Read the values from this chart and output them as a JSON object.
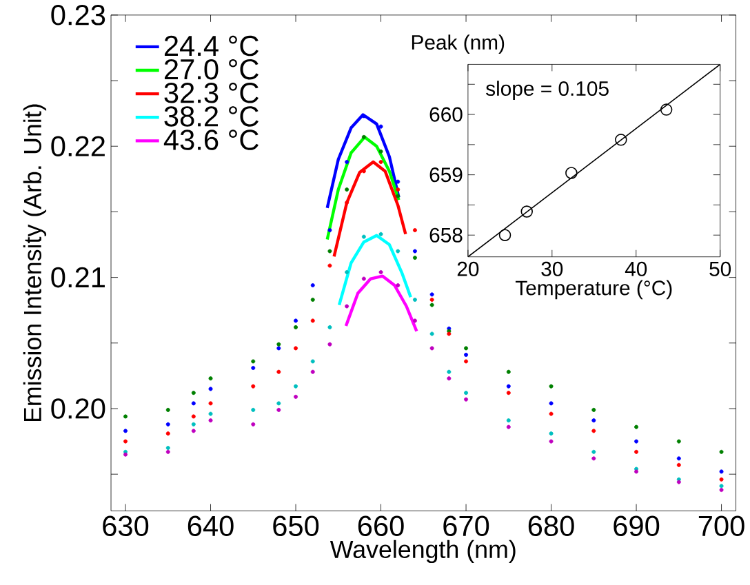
{
  "chart_data": [
    {
      "type": "scatter",
      "xlabel": "Wavelength (nm)",
      "ylabel": "Emission Intensity (Arb. Unit)",
      "x": [
        630,
        635,
        638,
        640,
        645,
        648,
        650,
        652,
        654,
        656,
        658,
        660,
        662,
        664,
        666,
        668,
        670,
        675,
        680,
        685,
        690,
        695,
        700
      ],
      "series": [
        {
          "color": "#0000ff",
          "marker": "circle",
          "values": [
            0.1983,
            0.1988,
            0.2004,
            0.2015,
            0.2031,
            0.2046,
            0.2067,
            0.2094,
            0.2136,
            0.2188,
            0.2223,
            0.2215,
            0.2173,
            0.212,
            0.2087,
            0.2061,
            0.2041,
            0.2017,
            0.2004,
            0.1991,
            0.1975,
            0.1962,
            0.1952
          ]
        },
        {
          "color": "#008000",
          "marker": "circle",
          "values": [
            0.1994,
            0.1999,
            0.2012,
            0.2023,
            0.2036,
            0.2049,
            0.2062,
            0.2083,
            0.212,
            0.2167,
            0.2207,
            0.2196,
            0.2162,
            0.2115,
            0.2079,
            0.2059,
            0.2046,
            0.2028,
            0.2017,
            0.1999,
            0.1986,
            0.1975,
            0.1967
          ]
        },
        {
          "color": "#ff0000",
          "marker": "circle",
          "values": [
            0.1975,
            0.1981,
            0.1994,
            0.2004,
            0.2017,
            0.2028,
            0.2046,
            0.2067,
            0.2109,
            0.2157,
            0.2181,
            0.2188,
            0.2167,
            0.2136,
            0.2083,
            0.2057,
            0.2036,
            0.2012,
            0.1996,
            0.1983,
            0.1967,
            0.1957,
            0.1946
          ]
        },
        {
          "color": "#00bfbf",
          "marker": "circle",
          "values": [
            0.1967,
            0.197,
            0.1988,
            0.1996,
            0.1999,
            0.2004,
            0.2017,
            0.2036,
            0.2062,
            0.2104,
            0.2131,
            0.2133,
            0.212,
            0.2083,
            0.2057,
            0.2028,
            0.2012,
            0.1991,
            0.1981,
            0.1967,
            0.1954,
            0.1946,
            0.1941
          ]
        },
        {
          "color": "#bf00bf",
          "marker": "circle",
          "values": [
            0.1965,
            0.1967,
            0.1983,
            0.1991,
            0.1988,
            0.1999,
            0.2009,
            0.2028,
            0.2049,
            0.2078,
            0.2099,
            0.2104,
            0.2094,
            0.2067,
            0.2046,
            0.2023,
            0.2007,
            0.1986,
            0.1975,
            0.1962,
            0.1952,
            0.1944,
            0.1938
          ]
        },
        {
          "type": "line",
          "name": "24.4 °C",
          "color": "#0000ff",
          "marker": "none",
          "x": [
            653.7,
            655,
            656.5,
            657.9,
            659.5,
            661,
            662.1
          ],
          "values": [
            0.2153,
            0.219,
            0.2214,
            0.2224,
            0.2217,
            0.2192,
            0.2161
          ]
        },
        {
          "type": "line",
          "name": "27.0 °C",
          "color": "#00ff00",
          "marker": "none",
          "x": [
            653.7,
            655,
            656.5,
            658.1,
            659.5,
            661,
            662.1
          ],
          "values": [
            0.2129,
            0.2167,
            0.2195,
            0.2207,
            0.22,
            0.2181,
            0.2159
          ]
        },
        {
          "type": "line",
          "name": "32.3 °C",
          "color": "#ff0000",
          "marker": "none",
          "x": [
            654.5,
            656,
            657.5,
            659.1,
            660.5,
            662,
            662.9
          ],
          "values": [
            0.2116,
            0.2157,
            0.218,
            0.2188,
            0.2181,
            0.2155,
            0.2133
          ]
        },
        {
          "type": "line",
          "name": "38.2 °C",
          "color": "#00ffff",
          "marker": "none",
          "x": [
            655.1,
            656.5,
            658,
            659.5,
            661,
            662.5,
            663.5
          ],
          "values": [
            0.2079,
            0.2111,
            0.2127,
            0.2132,
            0.2125,
            0.2103,
            0.2085
          ]
        },
        {
          "type": "line",
          "name": "43.6 °C",
          "color": "#ff00ff",
          "marker": "none",
          "x": [
            655.9,
            657.3,
            658.8,
            660.2,
            661.6,
            663,
            664.2
          ],
          "values": [
            0.2063,
            0.2088,
            0.2099,
            0.2101,
            0.2094,
            0.2078,
            0.2059
          ]
        }
      ],
      "xlim": [
        628.3,
        701.7
      ],
      "xticks": [
        630,
        640,
        650,
        660,
        670,
        680,
        690,
        700
      ],
      "ylim": [
        0.1922,
        0.23
      ],
      "yticks": [
        {
          "value": 0.195,
          "label": null
        },
        {
          "value": 0.2,
          "label": "0.20"
        },
        {
          "value": 0.205,
          "label": null
        },
        {
          "value": 0.21,
          "label": "0.21"
        },
        {
          "value": 0.215,
          "label": null
        },
        {
          "value": 0.22,
          "label": "0.22"
        },
        {
          "value": 0.225,
          "label": null
        },
        {
          "value": 0.23,
          "label": "0.23"
        }
      ],
      "legend": "top left"
    },
    {
      "type": "scatter",
      "xlabel": "Temperature (°C)",
      "ylabel": "Peak (nm)",
      "annotations": [
        "slope = 0.105"
      ],
      "series": [
        {
          "color": "#000000",
          "marker": "circle",
          "x": [
            24.4,
            27.0,
            32.3,
            38.2,
            43.6
          ],
          "values": [
            658.0,
            658.39,
            659.03,
            659.58,
            660.08
          ]
        },
        {
          "type": "line",
          "color": "#000000",
          "marker": "none",
          "x": [
            20,
            50
          ],
          "values": [
            657.64,
            660.83
          ]
        }
      ],
      "xlim": [
        20,
        50
      ],
      "xticks": [
        20,
        30,
        40,
        50
      ],
      "ylim": [
        657.64,
        660.83
      ],
      "yticks": [
        {
          "value": 658,
          "label": "658"
        },
        {
          "value": 658.5,
          "label": null
        },
        {
          "value": 659,
          "label": "659"
        },
        {
          "value": 659.5,
          "label": null
        },
        {
          "value": 660,
          "label": "660"
        },
        {
          "value": 660.5,
          "label": null
        }
      ]
    }
  ]
}
